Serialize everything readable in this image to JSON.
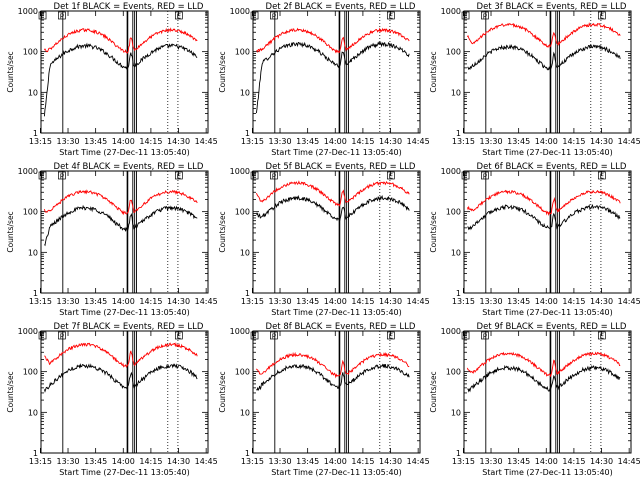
{
  "chart_data": [
    {
      "type": "line",
      "title": "Det 1f BLACK = Events, RED = LLD",
      "ylabel": "Counts/sec",
      "xlabel": "Start Time (27-Dec-11 13:05:40)",
      "yscale": "log",
      "ylim": [
        1,
        1000
      ],
      "x_ticks": [
        "13:15",
        "13:30",
        "13:45",
        "14:00",
        "14:15",
        "14:30",
        "14:45"
      ],
      "y_ticks": [
        "1",
        "10",
        "100",
        "1000"
      ],
      "markers": [
        "F",
        "P",
        "E"
      ],
      "series": [
        {
          "color": "#000000",
          "start_value": 2.5,
          "mean_level": 90
        },
        {
          "color": "#ff0000",
          "start_value": 110,
          "mean_level": 220
        }
      ]
    },
    {
      "type": "line",
      "title": "Det 2f BLACK = Events, RED = LLD",
      "ylabel": "Counts/sec",
      "xlabel": "Start Time (27-Dec-11 13:05:40)",
      "yscale": "log",
      "ylim": [
        1,
        1000
      ],
      "x_ticks": [
        "13:15",
        "13:30",
        "13:45",
        "14:00",
        "14:15",
        "14:30",
        "14:45"
      ],
      "y_ticks": [
        "1",
        "10",
        "100",
        "1000"
      ],
      "markers": [
        "F",
        "P",
        "E"
      ],
      "series": [
        {
          "color": "#000000",
          "start_value": 3,
          "mean_level": 100
        },
        {
          "color": "#ff0000",
          "start_value": 110,
          "mean_level": 220
        }
      ]
    },
    {
      "type": "line",
      "title": "Det 3f BLACK = Events, RED = LLD",
      "ylabel": "Counts/sec",
      "xlabel": "Start Time (27-Dec-11 13:05:40)",
      "yscale": "log",
      "ylim": [
        1,
        1000
      ],
      "x_ticks": [
        "13:15",
        "13:30",
        "13:45",
        "14:00",
        "14:15",
        "14:30",
        "14:45"
      ],
      "y_ticks": [
        "1",
        "10",
        "100",
        "1000"
      ],
      "markers": [
        "F",
        "P",
        "E"
      ],
      "series": [
        {
          "color": "#000000",
          "start_value": 40,
          "mean_level": 85
        },
        {
          "color": "#ff0000",
          "start_value": 250,
          "mean_level": 300
        }
      ]
    },
    {
      "type": "line",
      "title": "Det 4f BLACK = Events, RED = LLD",
      "ylabel": "Counts/sec",
      "xlabel": "Start Time (27-Dec-11 13:05:40)",
      "yscale": "log",
      "ylim": [
        1,
        1000
      ],
      "x_ticks": [
        "13:15",
        "13:30",
        "13:45",
        "14:00",
        "14:15",
        "14:30",
        "14:45"
      ],
      "y_ticks": [
        "1",
        "10",
        "100",
        "1000"
      ],
      "markers": [
        "F",
        "P",
        "E"
      ],
      "series": [
        {
          "color": "#000000",
          "start_value": 15,
          "mean_level": 80
        },
        {
          "color": "#ff0000",
          "start_value": 110,
          "mean_level": 200
        }
      ]
    },
    {
      "type": "line",
      "title": "Det 5f BLACK = Events, RED = LLD",
      "ylabel": "Counts/sec",
      "xlabel": "Start Time (27-Dec-11 13:05:40)",
      "yscale": "log",
      "ylim": [
        1,
        1000
      ],
      "x_ticks": [
        "13:15",
        "13:30",
        "13:45",
        "14:00",
        "14:15",
        "14:30",
        "14:45"
      ],
      "y_ticks": [
        "1",
        "10",
        "100",
        "1000"
      ],
      "markers": [
        "F",
        "P",
        "E"
      ],
      "series": [
        {
          "color": "#000000",
          "start_value": 90,
          "mean_level": 140
        },
        {
          "color": "#ff0000",
          "start_value": 280,
          "mean_level": 330
        }
      ]
    },
    {
      "type": "line",
      "title": "Det 6f BLACK = Events, RED = LLD",
      "ylabel": "Counts/sec",
      "xlabel": "Start Time (27-Dec-11 13:05:40)",
      "yscale": "log",
      "ylim": [
        1,
        1000
      ],
      "x_ticks": [
        "13:15",
        "13:30",
        "13:45",
        "14:00",
        "14:15",
        "14:30",
        "14:45"
      ],
      "y_ticks": [
        "1",
        "10",
        "100",
        "1000"
      ],
      "markers": [
        "F",
        "P",
        "E"
      ],
      "series": [
        {
          "color": "#000000",
          "start_value": 40,
          "mean_level": 85
        },
        {
          "color": "#ff0000",
          "start_value": 130,
          "mean_level": 200
        }
      ]
    },
    {
      "type": "line",
      "title": "Det 7f BLACK = Events, RED = LLD",
      "ylabel": "Counts/sec",
      "xlabel": "Start Time (27-Dec-11 13:05:40)",
      "yscale": "log",
      "ylim": [
        1,
        1000
      ],
      "x_ticks": [
        "13:15",
        "13:30",
        "13:45",
        "14:00",
        "14:15",
        "14:30",
        "14:45"
      ],
      "y_ticks": [
        "1",
        "10",
        "100",
        "1000"
      ],
      "markers": [
        "F",
        "P",
        "E"
      ],
      "series": [
        {
          "color": "#000000",
          "start_value": 35,
          "mean_level": 90
        },
        {
          "color": "#ff0000",
          "start_value": 260,
          "mean_level": 300
        }
      ]
    },
    {
      "type": "line",
      "title": "Det 8f BLACK = Events, RED = LLD",
      "ylabel": "Counts/sec",
      "xlabel": "Start Time (27-Dec-11 13:05:40)",
      "yscale": "log",
      "ylim": [
        1,
        1000
      ],
      "x_ticks": [
        "13:15",
        "13:30",
        "13:45",
        "14:00",
        "14:15",
        "14:30",
        "14:45"
      ],
      "y_ticks": [
        "1",
        "10",
        "100",
        "1000"
      ],
      "markers": [
        "F",
        "P",
        "E"
      ],
      "series": [
        {
          "color": "#000000",
          "start_value": 35,
          "mean_level": 90
        },
        {
          "color": "#ff0000",
          "start_value": 110,
          "mean_level": 170
        }
      ]
    },
    {
      "type": "line",
      "title": "Det 9f BLACK = Events, RED = LLD",
      "ylabel": "Counts/sec",
      "xlabel": "Start Time (27-Dec-11 13:05:40)",
      "yscale": "log",
      "ylim": [
        1,
        1000
      ],
      "x_ticks": [
        "13:15",
        "13:30",
        "13:45",
        "14:00",
        "14:15",
        "14:30",
        "14:45"
      ],
      "y_ticks": [
        "1",
        "10",
        "100",
        "1000"
      ],
      "markers": [
        "F",
        "P",
        "E"
      ],
      "series": [
        {
          "color": "#000000",
          "start_value": 35,
          "mean_level": 80
        },
        {
          "color": "#ff0000",
          "start_value": 120,
          "mean_level": 180
        }
      ]
    }
  ]
}
